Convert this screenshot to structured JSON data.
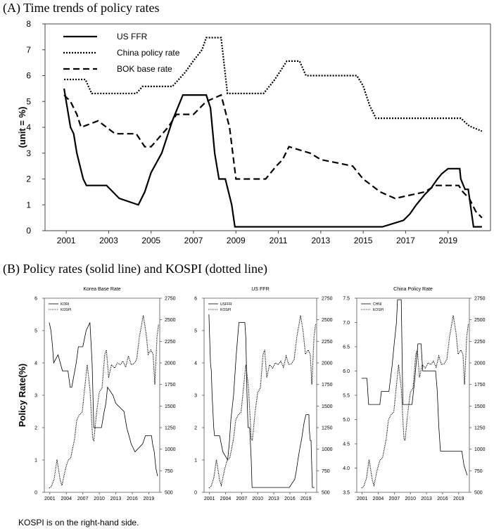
{
  "panel_a_heading": "(A) Time trends of policy rates",
  "panel_b_heading": "(B) Policy rates (solid line) and KOSPI (dotted line)",
  "footnote": "KOSPI is on the right-hand side.",
  "chart_data": [
    {
      "type": "line",
      "title": "",
      "ylabel": "(unit = %)",
      "xlabel": "",
      "xlim": [
        2000,
        2021
      ],
      "ylim": [
        0,
        8
      ],
      "xticks": [
        2001,
        2003,
        2005,
        2007,
        2009,
        2011,
        2013,
        2015,
        2017,
        2019
      ],
      "yticks": [
        0,
        1,
        2,
        3,
        4,
        5,
        6,
        7,
        8
      ],
      "legend_position": "top-left",
      "series": [
        {
          "name": "US FFR",
          "style": "solid",
          "x": [
            2000.9,
            2001.0,
            2001.2,
            2001.35,
            2001.5,
            2001.65,
            2001.8,
            2001.95,
            2002.9,
            2003.5,
            2004.4,
            2004.7,
            2005.0,
            2005.5,
            2006.0,
            2006.5,
            2007.6,
            2007.8,
            2008.0,
            2008.2,
            2008.5,
            2008.8,
            2008.95,
            2015.9,
            2016.9,
            2017.2,
            2017.5,
            2017.9,
            2018.2,
            2018.5,
            2018.7,
            2019.0,
            2019.55,
            2019.6,
            2019.8,
            2019.95,
            2020.2,
            2020.3,
            2020.6
          ],
          "y": [
            5.5,
            5.0,
            4.0,
            3.75,
            3.0,
            2.5,
            2.0,
            1.75,
            1.75,
            1.25,
            1.0,
            1.5,
            2.25,
            3.0,
            4.25,
            5.25,
            5.25,
            4.75,
            3.0,
            2.0,
            2.0,
            1.0,
            0.15,
            0.15,
            0.4,
            0.65,
            1.0,
            1.4,
            1.65,
            2.0,
            2.2,
            2.4,
            2.4,
            2.0,
            1.6,
            1.6,
            0.15,
            0.15,
            0.15
          ]
        },
        {
          "name": "China policy rate",
          "style": "dotted",
          "x": [
            2000.9,
            2001.9,
            2002.2,
            2004.3,
            2004.6,
            2006.0,
            2006.6,
            2007.0,
            2007.4,
            2007.6,
            2008.3,
            2008.6,
            2010.3,
            2010.8,
            2011.0,
            2011.4,
            2012.0,
            2012.3,
            2014.7,
            2015.0,
            2015.3,
            2015.6,
            2019.6,
            2020.0,
            2020.6
          ],
          "y": [
            5.85,
            5.85,
            5.31,
            5.31,
            5.58,
            5.58,
            6.12,
            6.58,
            7.0,
            7.47,
            7.47,
            5.31,
            5.31,
            5.81,
            6.06,
            6.56,
            6.56,
            6.0,
            6.0,
            5.6,
            4.85,
            4.35,
            4.35,
            4.05,
            3.85
          ]
        },
        {
          "name": "BOK base rate",
          "style": "dashed",
          "x": [
            2000.9,
            2001.2,
            2001.5,
            2001.7,
            2002.5,
            2003.3,
            2004.3,
            2004.7,
            2005.0,
            2005.8,
            2006.2,
            2007.0,
            2007.6,
            2008.3,
            2008.7,
            2009.0,
            2010.4,
            2010.9,
            2011.2,
            2011.5,
            2012.5,
            2013.0,
            2014.5,
            2015.0,
            2015.8,
            2016.5,
            2017.9,
            2018.4,
            2019.5,
            2019.7,
            2020.0,
            2020.3,
            2020.6
          ],
          "y": [
            5.25,
            5.0,
            4.5,
            4.0,
            4.25,
            3.75,
            3.75,
            3.25,
            3.25,
            4.0,
            4.5,
            4.5,
            5.0,
            5.25,
            4.0,
            2.0,
            2.0,
            2.5,
            2.75,
            3.25,
            3.0,
            2.75,
            2.5,
            2.0,
            1.5,
            1.25,
            1.5,
            1.75,
            1.75,
            1.5,
            1.25,
            0.75,
            0.5
          ]
        }
      ]
    },
    {
      "type": "line",
      "title": "Korea Base Rate",
      "ylabel": "Policy Rate(%)",
      "ylim": [
        0,
        6
      ],
      "yticks": [
        0,
        1,
        2,
        3,
        4,
        5,
        6
      ],
      "y2lim": [
        500,
        2750
      ],
      "y2ticks": [
        500,
        750,
        1000,
        1250,
        1500,
        1750,
        2000,
        2250,
        2500,
        2750
      ],
      "xlim": [
        2000,
        2021
      ],
      "xticks": [
        2001,
        2004,
        2007,
        2010,
        2013,
        2016,
        2019
      ],
      "legend_position": "top-left",
      "series": [
        {
          "name": "KORI",
          "style": "solid",
          "axis": "left",
          "x": [
            2000.9,
            2001.2,
            2001.5,
            2001.7,
            2002.5,
            2003.3,
            2004.3,
            2004.7,
            2005.0,
            2005.8,
            2006.2,
            2007.0,
            2007.6,
            2008.3,
            2008.7,
            2009.0,
            2010.4,
            2010.9,
            2011.2,
            2011.5,
            2012.5,
            2013.0,
            2014.5,
            2015.0,
            2015.8,
            2016.5,
            2017.9,
            2018.4,
            2019.5,
            2019.7,
            2020.0,
            2020.3,
            2020.6
          ],
          "y": [
            5.25,
            5.0,
            4.5,
            4.0,
            4.25,
            3.75,
            3.75,
            3.25,
            3.25,
            4.0,
            4.5,
            4.5,
            5.0,
            5.25,
            4.0,
            2.0,
            2.0,
            2.5,
            2.75,
            3.25,
            3.0,
            2.75,
            2.5,
            2.0,
            1.5,
            1.25,
            1.5,
            1.75,
            1.75,
            1.5,
            1.25,
            0.75,
            0.5
          ]
        },
        {
          "name": "KOSPI",
          "style": "dotted",
          "axis": "right",
          "x": [
            2000.9,
            2001.3,
            2001.8,
            2002.3,
            2002.9,
            2003.2,
            2003.8,
            2004.3,
            2004.8,
            2005.5,
            2005.9,
            2006.4,
            2006.9,
            2007.3,
            2007.8,
            2008.3,
            2008.8,
            2009.0,
            2009.5,
            2010.0,
            2010.5,
            2011.0,
            2011.3,
            2011.7,
            2012.2,
            2012.8,
            2013.3,
            2013.8,
            2014.3,
            2014.8,
            2015.3,
            2015.8,
            2016.3,
            2016.8,
            2017.3,
            2017.8,
            2018.0,
            2018.5,
            2018.9,
            2019.4,
            2019.8,
            2020.1,
            2020.5,
            2020.8
          ],
          "y": [
            550,
            570,
            660,
            880,
            640,
            580,
            760,
            870,
            900,
            1120,
            1340,
            1400,
            1430,
            1680,
            1980,
            1700,
            1120,
            1100,
            1420,
            1660,
            1710,
            2100,
            2150,
            1830,
            1980,
            1940,
            2000,
            1980,
            2020,
            1950,
            2080,
            1980,
            1990,
            2040,
            2300,
            2480,
            2550,
            2350,
            2100,
            2150,
            2100,
            1750,
            2300,
            2450
          ]
        }
      ]
    },
    {
      "type": "line",
      "title": "US FFR",
      "ylim": [
        0,
        6
      ],
      "yticks": [
        0,
        1,
        2,
        3,
        4,
        5,
        6
      ],
      "y2lim": [
        500,
        2750
      ],
      "y2ticks": [
        500,
        750,
        1000,
        1250,
        1500,
        1750,
        2000,
        2250,
        2500,
        2750
      ],
      "xlim": [
        2000,
        2021
      ],
      "xticks": [
        2001,
        2004,
        2007,
        2010,
        2013,
        2016,
        2019
      ],
      "legend_position": "top-left",
      "series": [
        {
          "name": "USFFR",
          "style": "solid",
          "axis": "left",
          "x": [
            2000.9,
            2001.0,
            2001.2,
            2001.35,
            2001.5,
            2001.65,
            2001.8,
            2001.95,
            2002.9,
            2003.5,
            2004.4,
            2004.7,
            2005.0,
            2005.5,
            2006.0,
            2006.5,
            2007.6,
            2007.8,
            2008.0,
            2008.2,
            2008.5,
            2008.8,
            2008.95,
            2015.9,
            2016.9,
            2017.2,
            2017.5,
            2017.9,
            2018.2,
            2018.5,
            2018.7,
            2019.0,
            2019.55,
            2019.6,
            2019.8,
            2019.95,
            2020.2,
            2020.3,
            2020.6
          ],
          "y": [
            5.5,
            5.0,
            4.0,
            3.75,
            3.0,
            2.5,
            2.0,
            1.75,
            1.75,
            1.25,
            1.0,
            1.5,
            2.25,
            3.0,
            4.25,
            5.25,
            5.25,
            4.75,
            3.0,
            2.0,
            2.0,
            1.0,
            0.15,
            0.15,
            0.4,
            0.65,
            1.0,
            1.4,
            1.65,
            2.0,
            2.2,
            2.4,
            2.4,
            2.0,
            1.6,
            1.6,
            0.15,
            0.15,
            0.15
          ]
        },
        {
          "name": "KOSPI",
          "style": "dotted",
          "axis": "right",
          "x": [
            2000.9,
            2001.3,
            2001.8,
            2002.3,
            2002.9,
            2003.2,
            2003.8,
            2004.3,
            2004.8,
            2005.5,
            2005.9,
            2006.4,
            2006.9,
            2007.3,
            2007.8,
            2008.3,
            2008.8,
            2009.0,
            2009.5,
            2010.0,
            2010.5,
            2011.0,
            2011.3,
            2011.7,
            2012.2,
            2012.8,
            2013.3,
            2013.8,
            2014.3,
            2014.8,
            2015.3,
            2015.8,
            2016.3,
            2016.8,
            2017.3,
            2017.8,
            2018.0,
            2018.5,
            2018.9,
            2019.4,
            2019.8,
            2020.1,
            2020.5,
            2020.8
          ],
          "y": [
            550,
            570,
            660,
            880,
            640,
            580,
            760,
            870,
            900,
            1120,
            1340,
            1400,
            1430,
            1680,
            1980,
            1700,
            1120,
            1100,
            1420,
            1660,
            1710,
            2100,
            2150,
            1830,
            1980,
            1940,
            2000,
            1980,
            2020,
            1950,
            2080,
            1980,
            1990,
            2040,
            2300,
            2480,
            2550,
            2350,
            2100,
            2150,
            2100,
            1750,
            2300,
            2450
          ]
        }
      ]
    },
    {
      "type": "line",
      "title": "China Policy Rate",
      "ylim": [
        3.5,
        7.5
      ],
      "yticks": [
        3.5,
        4.0,
        4.5,
        5.0,
        5.5,
        6.0,
        6.5,
        7.0,
        7.5
      ],
      "ytick_labels": [
        "3.5",
        "4.0",
        "4.5",
        "5.0",
        "5.5",
        "6.0",
        "6.5",
        "7.0",
        "7.5"
      ],
      "y2lim": [
        500,
        2750
      ],
      "y2ticks": [
        500,
        750,
        1000,
        1250,
        1500,
        1750,
        2000,
        2250,
        2500,
        2750
      ],
      "xlim": [
        2000,
        2021
      ],
      "xticks": [
        2001,
        2004,
        2007,
        2010,
        2013,
        2016,
        2019
      ],
      "legend_position": "top-left",
      "series": [
        {
          "name": "CHNI",
          "style": "solid",
          "axis": "left",
          "x": [
            2000.9,
            2001.9,
            2002.2,
            2004.3,
            2004.6,
            2006.0,
            2006.6,
            2007.0,
            2007.4,
            2007.6,
            2008.3,
            2008.6,
            2010.3,
            2010.8,
            2011.0,
            2011.4,
            2012.0,
            2012.3,
            2014.7,
            2015.0,
            2015.3,
            2015.6,
            2019.6,
            2020.0,
            2020.6
          ],
          "y": [
            5.85,
            5.85,
            5.31,
            5.31,
            5.58,
            5.58,
            6.12,
            6.58,
            7.0,
            7.47,
            7.47,
            5.31,
            5.31,
            5.81,
            6.06,
            6.56,
            6.56,
            6.0,
            6.0,
            5.6,
            4.85,
            4.35,
            4.35,
            4.05,
            3.85
          ]
        },
        {
          "name": "KOSPI",
          "style": "dotted",
          "axis": "right",
          "x": [
            2000.9,
            2001.3,
            2001.8,
            2002.3,
            2002.9,
            2003.2,
            2003.8,
            2004.3,
            2004.8,
            2005.5,
            2005.9,
            2006.4,
            2006.9,
            2007.3,
            2007.8,
            2008.3,
            2008.8,
            2009.0,
            2009.5,
            2010.0,
            2010.5,
            2011.0,
            2011.3,
            2011.7,
            2012.2,
            2012.8,
            2013.3,
            2013.8,
            2014.3,
            2014.8,
            2015.3,
            2015.8,
            2016.3,
            2016.8,
            2017.3,
            2017.8,
            2018.0,
            2018.5,
            2018.9,
            2019.4,
            2019.8,
            2020.1,
            2020.5,
            2020.8
          ],
          "y": [
            550,
            570,
            660,
            880,
            640,
            580,
            760,
            870,
            900,
            1120,
            1340,
            1400,
            1430,
            1680,
            1980,
            1700,
            1120,
            1100,
            1420,
            1660,
            1710,
            2100,
            2150,
            1830,
            1980,
            1940,
            2000,
            1980,
            2020,
            1950,
            2080,
            1980,
            1990,
            2040,
            2300,
            2480,
            2550,
            2350,
            2100,
            2150,
            2100,
            1750,
            2300,
            2450
          ]
        }
      ]
    }
  ]
}
